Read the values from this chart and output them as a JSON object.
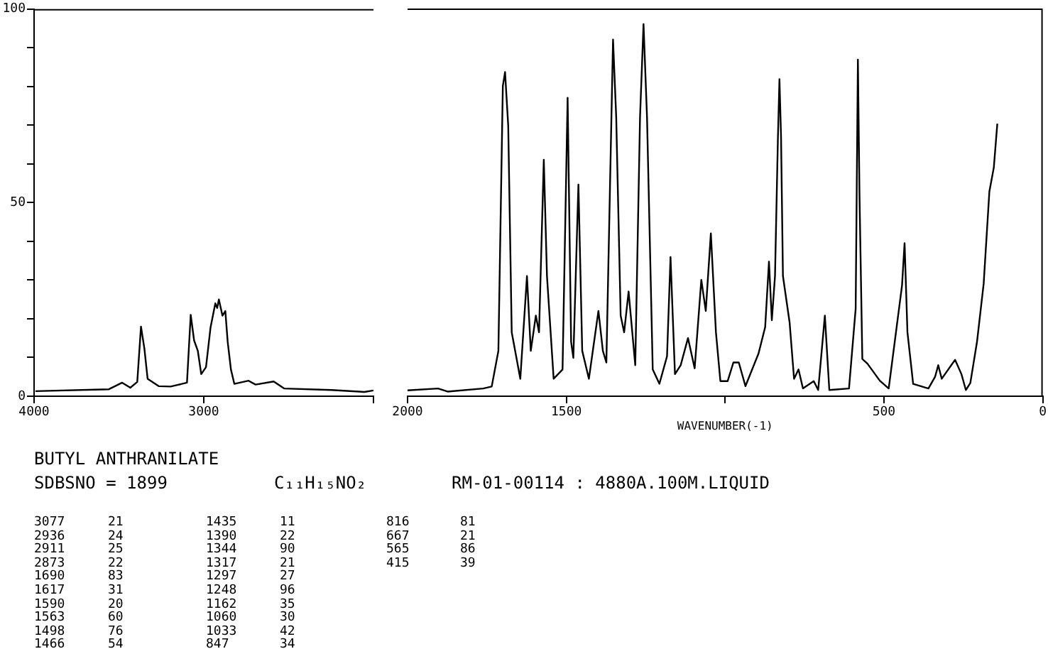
{
  "chart_data": [
    {
      "type": "line",
      "title": "BUTYL ANTHRANILATE",
      "annotations": [
        "SDBSNO = 1899",
        "C₁₁H₁₅NO₂",
        "RM-01-00114 : 4880A.100M.LIQUID",
        "3077 21",
        "2936 24",
        "2911 25",
        "2873 22",
        "1690 83",
        "1617 31",
        "1590 20",
        "1563 60",
        "1498 76",
        "1466 54",
        "1435 11",
        "1390 22",
        "1344 90",
        "1317 21",
        "1297 27",
        "1248 96",
        "1162 35",
        "1060 30",
        "1033 42",
        "847 34",
        "816 81",
        "667 21",
        "565 86",
        "415 39"
      ],
      "x": [
        3992,
        3559,
        3481,
        3433,
        3392,
        3370,
        3350,
        3331,
        3266,
        3196,
        3099,
        3077,
        3057,
        3035,
        3015,
        2987,
        2960,
        2932,
        2921,
        2911,
        2890,
        2873,
        2859,
        2840,
        2820,
        2736,
        2695,
        2588,
        2527,
        2248,
        2053,
        2000
      ],
      "series": [
        {
          "color": "#000000",
          "values": [
            1.3,
            1.8,
            3.5,
            2.2,
            3.7,
            18,
            12.3,
            4.5,
            2.6,
            2.5,
            3.5,
            21,
            14.4,
            11.7,
            5.7,
            7.5,
            17.8,
            24,
            22.8,
            25,
            20.8,
            22,
            14,
            6.9,
            3.2,
            4,
            3,
            3.8,
            2,
            1.6,
            1.1,
            1.5
          ]
        }
      ],
      "xlim": [
        4000,
        2000
      ],
      "xticks": [
        4000,
        3000,
        {
          "value": 2000,
          "label": null
        }
      ],
      "ylim": [
        0,
        100
      ],
      "yticks": [
        0,
        {
          "value": 10,
          "label": null
        },
        {
          "value": 20,
          "label": null
        },
        {
          "value": 30,
          "label": null
        },
        {
          "value": 40,
          "label": null
        },
        50,
        {
          "value": 60,
          "label": null
        },
        {
          "value": 70,
          "label": null
        },
        {
          "value": 80,
          "label": null
        },
        {
          "value": 90,
          "label": null
        },
        100
      ],
      "grid": false,
      "legend": false,
      "marker": "none",
      "line_style": "solid"
    },
    {
      "type": "line",
      "xlabel": "WAVENUMBER(-1)",
      "x": [
        2000,
        1904,
        1874,
        1762,
        1735,
        1714,
        1700,
        1693,
        1683,
        1672,
        1645,
        1624,
        1612,
        1596,
        1586,
        1571,
        1561,
        1540,
        1512,
        1496,
        1485,
        1478,
        1462,
        1450,
        1429,
        1399,
        1385,
        1374,
        1353,
        1343,
        1329,
        1318,
        1304,
        1283,
        1268,
        1257,
        1246,
        1228,
        1207,
        1183,
        1172,
        1158,
        1140,
        1117,
        1096,
        1075,
        1061,
        1045,
        1029,
        1015,
        992,
        974,
        957,
        936,
        895,
        874,
        862,
        853,
        843,
        834,
        829,
        824,
        818,
        797,
        783,
        769,
        755,
        721,
        707,
        686,
        672,
        610,
        589,
        582,
        577,
        568,
        552,
        513,
        485,
        443,
        435,
        426,
        408,
        360,
        339,
        329,
        318,
        276,
        256,
        242,
        228,
        207,
        186,
        168,
        154,
        143
      ],
      "series": [
        {
          "color": "#000000",
          "values": [
            1.5,
            2,
            1.2,
            2,
            2.5,
            11.7,
            80,
            83.6,
            69.7,
            16.5,
            4.5,
            31,
            11.7,
            20.8,
            16.5,
            61,
            31,
            4.5,
            6.9,
            77,
            14,
            9.9,
            54.6,
            11.7,
            4.5,
            22,
            11.7,
            8.7,
            92,
            72,
            20.8,
            16.5,
            27,
            8,
            72,
            96,
            72,
            6.9,
            3.2,
            10.3,
            35.9,
            5.7,
            8,
            15,
            7.2,
            30,
            22,
            42,
            16.5,
            3.9,
            3.9,
            8.7,
            8.7,
            2.6,
            11,
            17.8,
            34.7,
            19.6,
            31,
            66,
            81.8,
            67,
            31,
            19,
            4.5,
            6.9,
            2,
            3.9,
            1.6,
            20.8,
            1.6,
            2,
            22.6,
            86.8,
            52,
            9.6,
            8.4,
            4,
            2,
            28.6,
            39.5,
            16.5,
            3.2,
            2,
            5,
            8,
            4.5,
            9.4,
            5.7,
            1.6,
            3.4,
            14,
            29,
            52.8,
            59,
            70.3
          ]
        }
      ],
      "xlim": [
        2000,
        0
      ],
      "xticks": [
        2000,
        1500,
        {
          "value": 1000,
          "label": null
        },
        500,
        0
      ],
      "ylim": [
        0,
        100
      ],
      "tick_labels": "x",
      "grid": false,
      "legend": false,
      "marker": "none",
      "line_style": "solid"
    }
  ]
}
